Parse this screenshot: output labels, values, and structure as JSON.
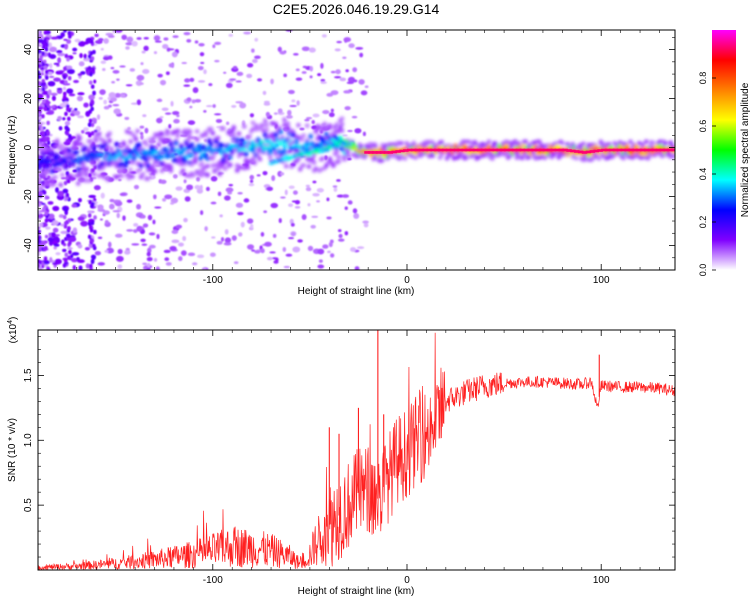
{
  "title": "C2E5.2026.046.19.29.G14",
  "chart_data": [
    {
      "type": "heatmap",
      "title": "C2E5.2026.046.19.29.G14",
      "xlabel": "Height of straight line (km)",
      "ylabel": "Frequency (Hz)",
      "xlim": [
        -190,
        138
      ],
      "ylim": [
        -50,
        48
      ],
      "xticks": [
        -100,
        0,
        100
      ],
      "yticks": [
        -40,
        -20,
        0,
        20,
        40
      ],
      "colorbar": {
        "label": "Normalized spectral amplitude",
        "range": [
          0,
          1
        ],
        "ticks": [
          "0.0",
          "0.2",
          "0.4",
          "0.6",
          "0.8"
        ],
        "tick_values": [
          0,
          0.2,
          0.4,
          0.6,
          0.8
        ],
        "colors": [
          "#ffffff",
          "#8000ff",
          "#0000ff",
          "#00ffff",
          "#00ff00",
          "#ffff00",
          "#ff8000",
          "#ff0000",
          "#ff00ff"
        ]
      },
      "ridge": {
        "x": [
          -185,
          -170,
          -150,
          -130,
          -110,
          -95,
          -80,
          -65,
          -55,
          -45,
          -40,
          -35,
          -32,
          -28,
          -22,
          -10,
          0,
          20,
          50,
          80,
          90,
          100,
          120,
          138
        ],
        "frequency_hz": [
          -6,
          -5,
          -3,
          -3,
          -2,
          -1,
          1,
          2,
          1,
          0,
          2,
          3,
          2,
          0,
          -2,
          -2,
          -1,
          -1,
          -1,
          -1,
          -2,
          -1,
          -1,
          -1
        ],
        "amplitude": [
          0.25,
          0.3,
          0.35,
          0.35,
          0.35,
          0.35,
          0.4,
          0.4,
          0.4,
          0.35,
          0.35,
          0.45,
          0.5,
          0.6,
          0.85,
          0.85,
          0.9,
          0.9,
          0.9,
          0.9,
          0.85,
          0.9,
          0.9,
          0.9
        ]
      }
    },
    {
      "type": "line",
      "xlabel": "Height of straight line (km)",
      "ylabel": "SNR (10 * v/v)",
      "y_multiplier": "(x10",
      "y_multiplier_exp": "4",
      "y_multiplier_close": ")",
      "xlim": [
        -190,
        138
      ],
      "ylim": [
        0,
        1.85
      ],
      "xticks": [
        -100,
        0,
        100
      ],
      "yticks": [
        "0.5",
        "1.0",
        "1.5"
      ],
      "ytick_values": [
        0.5,
        1.0,
        1.5
      ],
      "color": "#ff2020",
      "series": [
        {
          "name": "SNR",
          "x": [
            -190,
            -170,
            -150,
            -130,
            -110,
            -100,
            -90,
            -80,
            -70,
            -60,
            -55,
            -50,
            -45,
            -40,
            -35,
            -30,
            -25,
            -20,
            -15,
            -10,
            -5,
            0,
            5,
            10,
            15,
            20,
            30,
            40,
            50,
            60,
            70,
            80,
            90,
            95,
            98,
            100,
            110,
            120,
            130,
            138
          ],
          "y": [
            0.02,
            0.03,
            0.05,
            0.08,
            0.12,
            0.15,
            0.18,
            0.17,
            0.15,
            0.1,
            0.05,
            0.12,
            0.25,
            0.35,
            0.42,
            0.5,
            0.6,
            0.62,
            0.55,
            0.7,
            0.85,
            0.9,
            1.0,
            1.05,
            1.15,
            1.3,
            1.37,
            1.42,
            1.44,
            1.45,
            1.45,
            1.44,
            1.43,
            1.45,
            1.25,
            1.42,
            1.41,
            1.41,
            1.4,
            1.38
          ]
        }
      ],
      "peaks": [
        {
          "x": -15,
          "y": 1.85
        },
        {
          "x": -40,
          "y": 1.1
        },
        {
          "x": -35,
          "y": 1.05
        },
        {
          "x": -25,
          "y": 1.25
        },
        {
          "x": -12,
          "y": 1.2
        },
        {
          "x": 99,
          "y": 1.66
        }
      ]
    }
  ]
}
